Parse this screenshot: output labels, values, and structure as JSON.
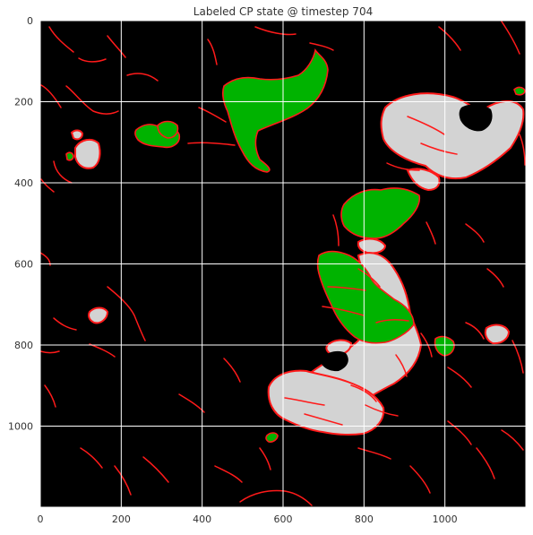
{
  "chart_data": {
    "type": "heatmap",
    "title": "Labeled CP state @ timestep 704",
    "xlabel": "",
    "ylabel": "",
    "xlim": [
      0,
      1200
    ],
    "ylim": [
      1200,
      0
    ],
    "x_ticks": [
      0,
      200,
      400,
      600,
      800,
      1000
    ],
    "y_ticks": [
      0,
      200,
      400,
      600,
      800,
      1000
    ],
    "grid": true,
    "legend": "none",
    "colors": {
      "background": "#000000",
      "boundary": "#ff1a1a",
      "green_region": "#00b300",
      "gray_region": "#d3d3d3",
      "grid": "#ffffff"
    }
  }
}
